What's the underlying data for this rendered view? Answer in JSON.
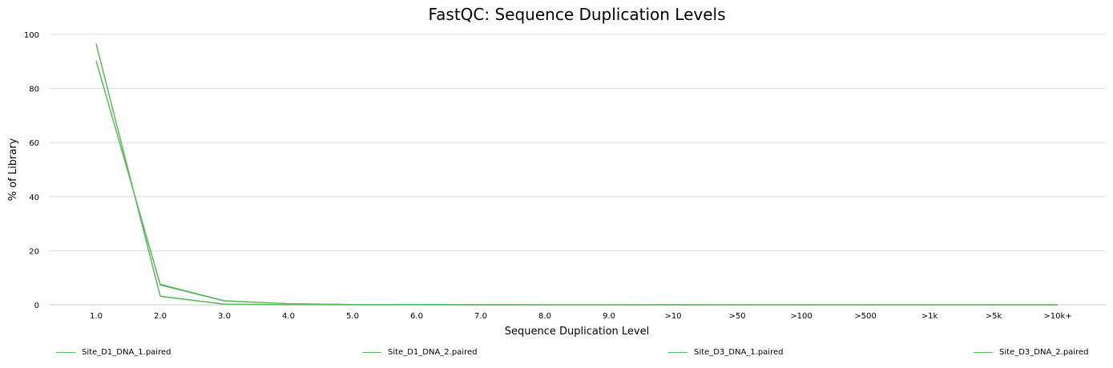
{
  "chart_data": {
    "type": "line",
    "title": "FastQC: Sequence Duplication Levels",
    "xlabel": "Sequence Duplication Level",
    "ylabel": "% of Library",
    "ylim": [
      0,
      100
    ],
    "y_ticks": [
      "0",
      "20",
      "40",
      "60",
      "80",
      "100"
    ],
    "grid": true,
    "legend_position": "bottom",
    "line_color": "#5cb85c",
    "grid_color": "#dcdcdc",
    "categories": [
      "1.0",
      "2.0",
      "3.0",
      "4.0",
      "5.0",
      "6.0",
      "7.0",
      "8.0",
      "9.0",
      ">10",
      ">50",
      ">100",
      ">500",
      ">1k",
      ">5k",
      ">10k+"
    ],
    "series": [
      {
        "name": "Site_D1_DNA_1.paired",
        "values": [
          90.3,
          7.3,
          1.4,
          0.4,
          0.1,
          0.05,
          0.02,
          0.01,
          0.01,
          0.02,
          0.0,
          0.0,
          0.0,
          0.0,
          0.0,
          0.0
        ]
      },
      {
        "name": "Site_D1_DNA_2.paired",
        "values": [
          96.6,
          3.1,
          0.2,
          0.05,
          0.01,
          0.0,
          0.0,
          0.0,
          0.0,
          0.0,
          0.0,
          0.0,
          0.0,
          0.0,
          0.0,
          0.0
        ]
      },
      {
        "name": "Site_D3_DNA_1.paired",
        "values": [
          90.1,
          7.6,
          1.5,
          0.4,
          0.1,
          0.05,
          0.02,
          0.01,
          0.01,
          0.02,
          0.0,
          0.0,
          0.0,
          0.0,
          0.0,
          0.0
        ]
      },
      {
        "name": "Site_D3_DNA_2.paired",
        "values": [
          96.4,
          3.2,
          0.25,
          0.05,
          0.01,
          0.0,
          0.0,
          0.0,
          0.0,
          0.0,
          0.0,
          0.0,
          0.0,
          0.0,
          0.0,
          0.0
        ]
      }
    ]
  }
}
